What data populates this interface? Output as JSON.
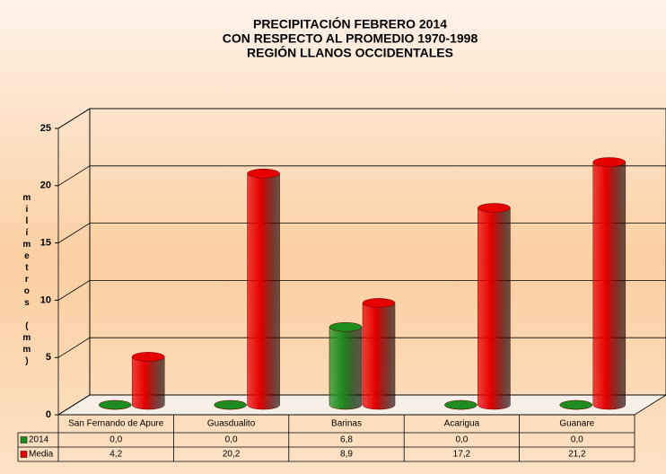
{
  "chart_data": {
    "type": "bar3d",
    "title": [
      "PRECIPITACIÓN FEBRERO 2014",
      "CON RESPECTO AL PROMEDIO 1970-1998",
      "REGIÓN LLANOS OCCIDENTALES"
    ],
    "y_label": "milímetros (mm)",
    "categories": [
      "San Fernando de Apure",
      "Guasdualito",
      "Barinas",
      "Acarigua",
      "Guanare"
    ],
    "series": [
      {
        "name": "2014",
        "color": "#1e8c1e",
        "values": [
          0.0,
          0.0,
          6.8,
          0.0,
          0.0
        ],
        "value_labels": [
          "0,0",
          "0,0",
          "6,8",
          "0,0",
          "0,0"
        ]
      },
      {
        "name": "Media",
        "color": "#e60000",
        "values": [
          4.2,
          20.2,
          8.9,
          17.2,
          21.2
        ],
        "value_labels": [
          "4,2",
          "20,2",
          "8,9",
          "17,2",
          "21,2"
        ]
      }
    ],
    "ylim": [
      0,
      25
    ],
    "yticks": [
      0,
      5,
      10,
      15,
      20,
      25
    ],
    "grid": true
  }
}
